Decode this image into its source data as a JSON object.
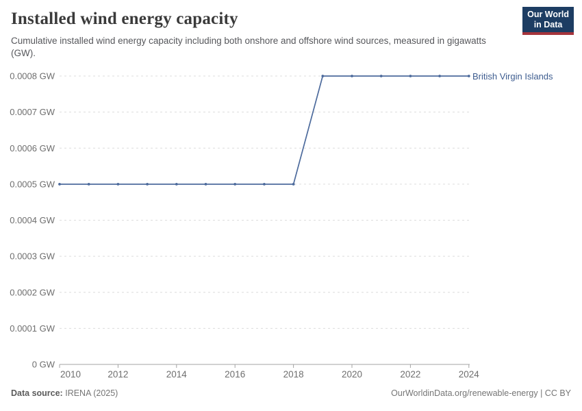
{
  "header": {
    "title": "Installed wind energy capacity",
    "subtitle": "Cumulative installed wind energy capacity including both onshore and offshore wind sources, measured in gigawatts (GW).",
    "logo": {
      "line1": "Our World",
      "line2": "in Data"
    }
  },
  "chart_data": {
    "type": "line",
    "title": "Installed wind energy capacity",
    "x": [
      2010,
      2011,
      2012,
      2013,
      2014,
      2015,
      2016,
      2017,
      2018,
      2019,
      2020,
      2021,
      2022,
      2023,
      2024
    ],
    "series": [
      {
        "name": "British Virgin Islands",
        "color": "#4C6A9C",
        "values": [
          0.0005,
          0.0005,
          0.0005,
          0.0005,
          0.0005,
          0.0005,
          0.0005,
          0.0005,
          0.0005,
          0.0008,
          0.0008,
          0.0008,
          0.0008,
          0.0008,
          0.0008
        ]
      }
    ],
    "xlabel": "",
    "ylabel": "",
    "unit": "GW",
    "xlim": [
      2010,
      2024
    ],
    "ylim": [
      0,
      0.0008
    ],
    "grid": "dashed-horizontal",
    "legend_position": "right-of-line-end",
    "yticks": [
      {
        "value": 0,
        "label": "0 GW"
      },
      {
        "value": 0.0001,
        "label": "0.0001 GW"
      },
      {
        "value": 0.0002,
        "label": "0.0002 GW"
      },
      {
        "value": 0.0003,
        "label": "0.0003 GW"
      },
      {
        "value": 0.0004,
        "label": "0.0004 GW"
      },
      {
        "value": 0.0005,
        "label": "0.0005 GW"
      },
      {
        "value": 0.0006,
        "label": "0.0006 GW"
      },
      {
        "value": 0.0007,
        "label": "0.0007 GW"
      },
      {
        "value": 0.0008,
        "label": "0.0008 GW"
      }
    ],
    "xticks": [
      {
        "value": 2010,
        "label": "2010"
      },
      {
        "value": 2012,
        "label": "2012"
      },
      {
        "value": 2014,
        "label": "2014"
      },
      {
        "value": 2016,
        "label": "2016"
      },
      {
        "value": 2018,
        "label": "2018"
      },
      {
        "value": 2020,
        "label": "2020"
      },
      {
        "value": 2022,
        "label": "2022"
      },
      {
        "value": 2024,
        "label": "2024"
      }
    ]
  },
  "footer": {
    "data_source_label": "Data source:",
    "data_source_value": "IRENA (2025)",
    "credit": "OurWorldinData.org/renewable-energy | CC BY"
  },
  "colors": {
    "line": "#4C6A9C",
    "entity_label": "#3d5c8f",
    "logo_navy": "#1d3d63",
    "logo_red": "#a5343c",
    "grid": "#dcdcdc",
    "axis": "#a3a3a3",
    "tick_text": "#6e6e6e",
    "title_text": "#3a3a3a",
    "subtitle_text": "#56575b"
  }
}
